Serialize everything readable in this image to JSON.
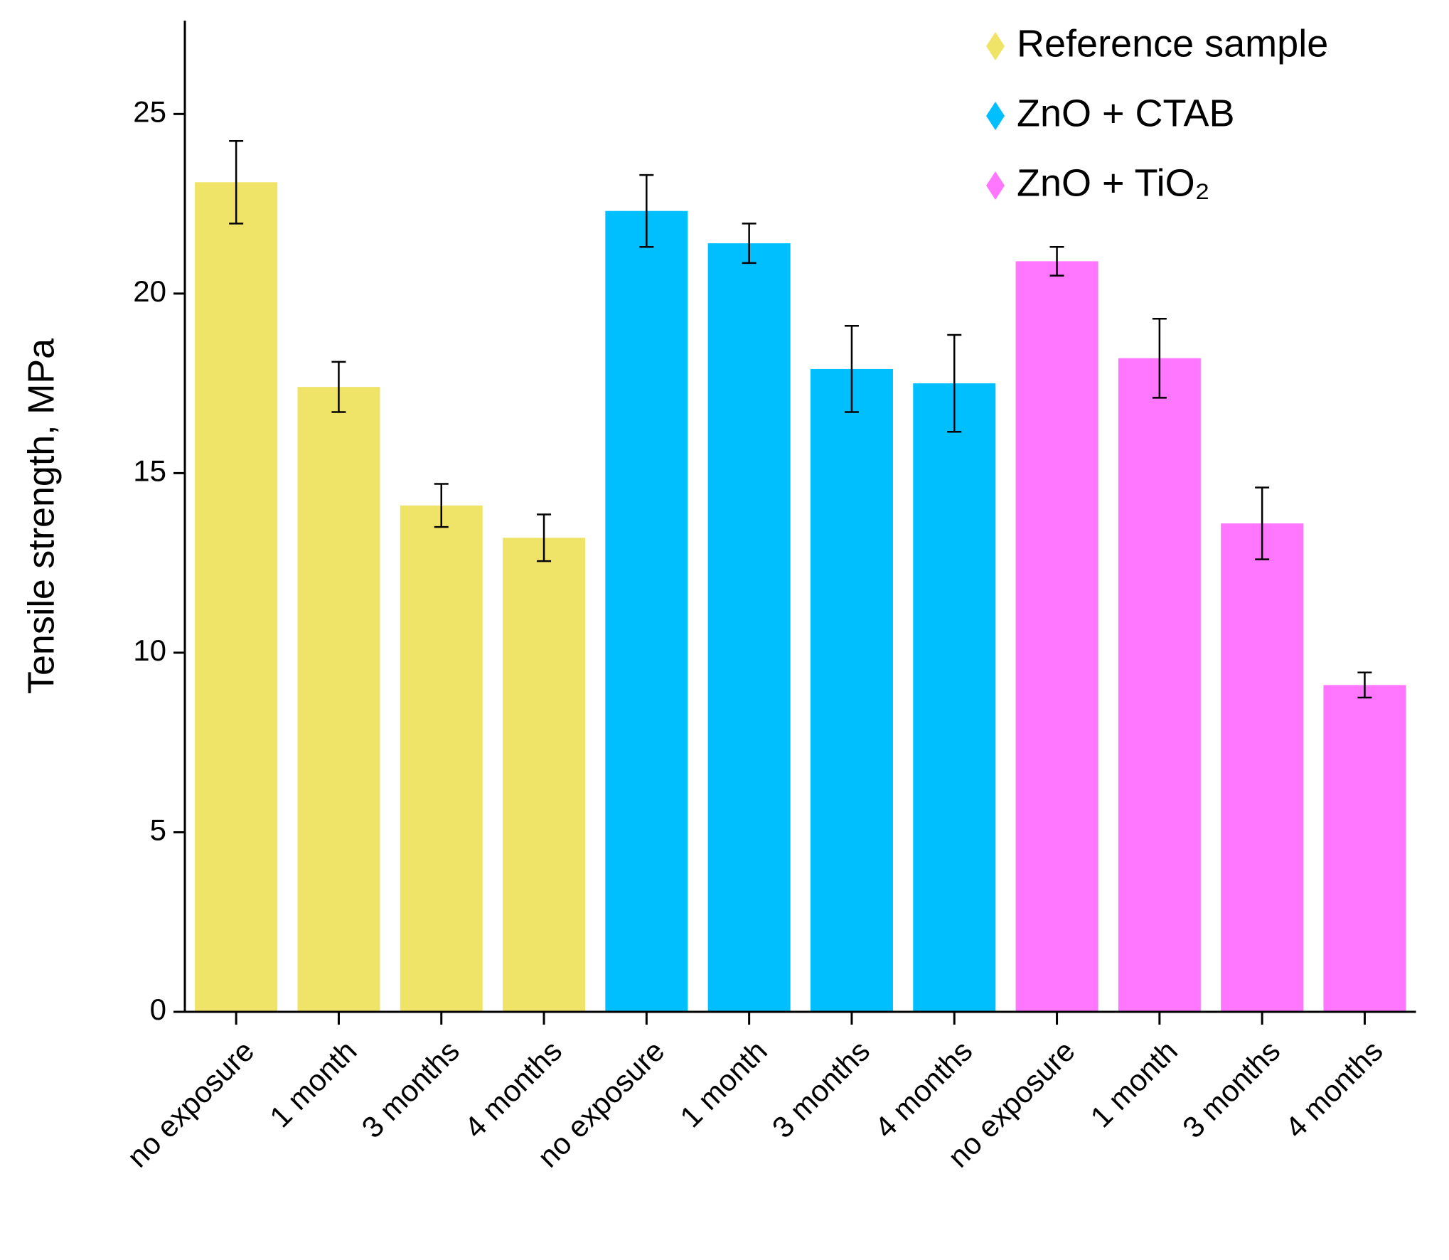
{
  "chart_data": {
    "type": "bar",
    "y_label": "Tensile strength, MPa",
    "categories": [
      "no exposure",
      "1 month",
      "3 months",
      "4 months",
      "no exposure",
      "1 month",
      "3 months",
      "4 months",
      "no exposure",
      "1 month",
      "3 months",
      "4 months"
    ],
    "series": [
      {
        "name": "Reference sample",
        "color": "#f0e468",
        "values": [
          23.1,
          17.4,
          14.1,
          13.2,
          null,
          null,
          null,
          null,
          null,
          null,
          null,
          null
        ],
        "errors": [
          1.15,
          0.7,
          0.6,
          0.65,
          null,
          null,
          null,
          null,
          null,
          null,
          null,
          null
        ]
      },
      {
        "name": "ZnO + CTAB",
        "color": "#00bfff",
        "values": [
          null,
          null,
          null,
          null,
          22.3,
          21.4,
          17.9,
          17.5,
          null,
          null,
          null,
          null
        ],
        "errors": [
          null,
          null,
          null,
          null,
          1.0,
          0.55,
          1.2,
          1.35,
          null,
          null,
          null,
          null
        ]
      },
      {
        "name": "ZnO + TiO₂",
        "color": "#ff77ff",
        "values": [
          null,
          null,
          null,
          null,
          null,
          null,
          null,
          null,
          20.9,
          18.2,
          13.6,
          9.1
        ],
        "errors": [
          null,
          null,
          null,
          null,
          null,
          null,
          null,
          null,
          0.4,
          1.1,
          1.0,
          0.35
        ]
      }
    ],
    "ylim": [
      0,
      27.6
    ],
    "yticks": [
      0,
      5,
      10,
      15,
      20,
      25
    ],
    "legend": "top-right"
  }
}
